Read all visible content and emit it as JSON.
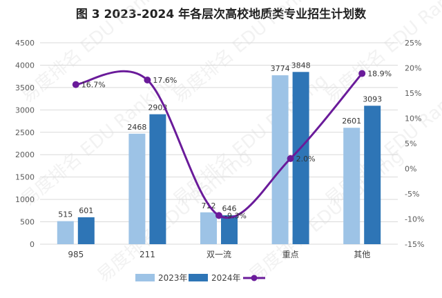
{
  "chart_data": {
    "type": "bar",
    "title": "图 3 2023-2024 年各层次高校地质类专业招生计划数",
    "categories": [
      "985",
      "211",
      "双一流",
      "重点",
      "其他"
    ],
    "series": [
      {
        "name": "2023年",
        "type": "bar",
        "axis": "left",
        "color": "#9DC3E6",
        "values": [
          515,
          2468,
          712,
          3774,
          2601
        ],
        "labels": [
          "515",
          "2468",
          "712",
          "3774",
          "2601"
        ]
      },
      {
        "name": "2024年",
        "type": "bar",
        "axis": "left",
        "color": "#2E75B6",
        "values": [
          601,
          2903,
          646,
          3848,
          3093
        ],
        "labels": [
          "601",
          "2903",
          "646",
          "3848",
          "3093"
        ]
      },
      {
        "name": "",
        "type": "line",
        "axis": "right",
        "color": "#6A1B9A",
        "smooth": true,
        "values": [
          16.7,
          17.6,
          -9.3,
          2.0,
          18.9
        ],
        "labels": [
          "16.7%",
          "17.6%",
          "-9.3%",
          "2.0%",
          "18.9%"
        ]
      }
    ],
    "y_left": {
      "min": 0,
      "max": 4500,
      "step": 500,
      "ticks": [
        "0",
        "500",
        "1000",
        "1500",
        "2000",
        "2500",
        "3000",
        "3500",
        "4000",
        "4500"
      ]
    },
    "y_right": {
      "min": -15,
      "max": 25,
      "step": 5,
      "ticks": [
        "-15%",
        "-10%",
        "-5%",
        "0%",
        "5%",
        "10%",
        "15%",
        "20%",
        "25%"
      ]
    },
    "grid": true,
    "legend": {
      "position": "bottom"
    },
    "watermark": "易度排名 EDU Ranking"
  }
}
